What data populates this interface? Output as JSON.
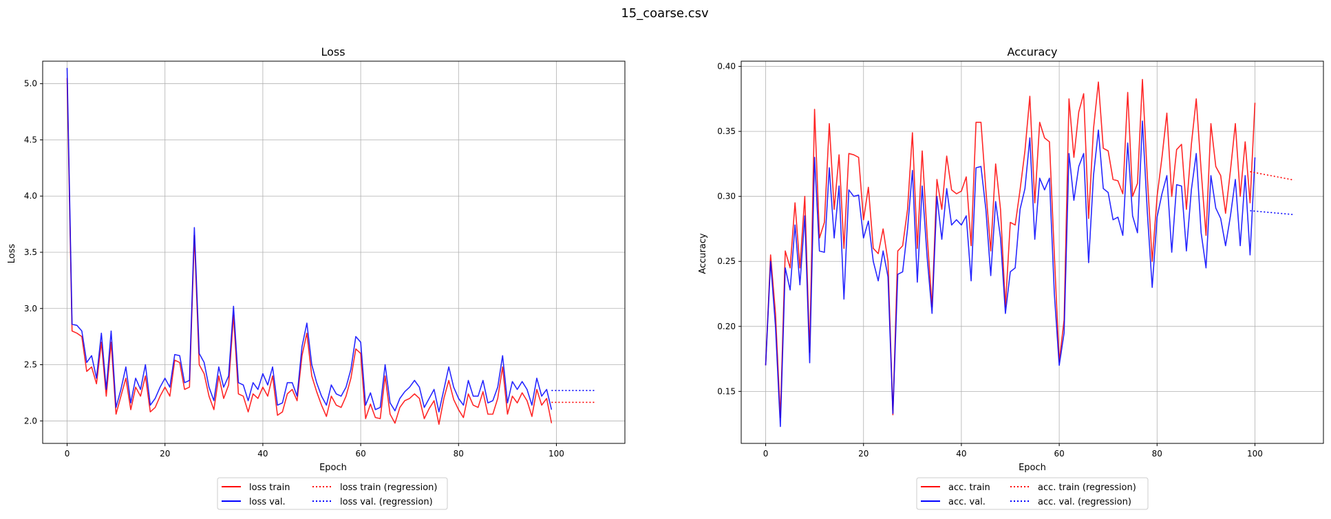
{
  "suptitle": "15_coarse.csv",
  "chart_data": [
    {
      "type": "line",
      "title": "Loss",
      "xlabel": "Epoch",
      "ylabel": "Loss",
      "xlim": [
        -5,
        114
      ],
      "ylim": [
        1.8,
        5.2
      ],
      "xticks": [
        0,
        20,
        40,
        60,
        80,
        100
      ],
      "yticks": [
        2.0,
        2.5,
        3.0,
        3.5,
        4.0,
        4.5,
        5.0
      ],
      "ytick_labels": [
        "2.0",
        "2.5",
        "3.0",
        "3.5",
        "4.0",
        "4.5",
        "5.0"
      ],
      "grid": true,
      "legend_position": "bottom-center, below plot",
      "series": [
        {
          "name": "loss train",
          "color": "#ff0000",
          "style": "solid",
          "values": [
            5.05,
            2.8,
            2.78,
            2.75,
            2.44,
            2.48,
            2.33,
            2.7,
            2.22,
            2.7,
            2.06,
            2.22,
            2.38,
            2.1,
            2.3,
            2.22,
            2.4,
            2.08,
            2.12,
            2.22,
            2.3,
            2.22,
            2.54,
            2.52,
            2.28,
            2.3,
            3.65,
            2.5,
            2.42,
            2.22,
            2.1,
            2.4,
            2.2,
            2.32,
            2.94,
            2.24,
            2.22,
            2.08,
            2.24,
            2.2,
            2.3,
            2.22,
            2.4,
            2.05,
            2.08,
            2.24,
            2.28,
            2.18,
            2.58,
            2.78,
            2.4,
            2.26,
            2.14,
            2.04,
            2.22,
            2.14,
            2.12,
            2.22,
            2.38,
            2.64,
            2.6,
            2.02,
            2.15,
            2.03,
            2.02,
            2.4,
            2.06,
            1.98,
            2.12,
            2.18,
            2.2,
            2.24,
            2.2,
            2.02,
            2.11,
            2.18,
            1.97,
            2.2,
            2.36,
            2.19,
            2.1,
            2.03,
            2.24,
            2.14,
            2.12,
            2.26,
            2.06,
            2.06,
            2.2,
            2.48,
            2.06,
            2.22,
            2.16,
            2.25,
            2.18,
            2.04,
            2.28,
            2.14,
            2.2,
            1.98
          ]
        },
        {
          "name": "loss val.",
          "color": "#0000ff",
          "style": "solid",
          "values": [
            5.14,
            2.86,
            2.85,
            2.8,
            2.52,
            2.58,
            2.38,
            2.78,
            2.28,
            2.8,
            2.12,
            2.28,
            2.48,
            2.16,
            2.38,
            2.28,
            2.5,
            2.14,
            2.2,
            2.3,
            2.38,
            2.3,
            2.59,
            2.58,
            2.34,
            2.36,
            3.72,
            2.6,
            2.52,
            2.3,
            2.18,
            2.48,
            2.3,
            2.4,
            3.02,
            2.34,
            2.32,
            2.18,
            2.34,
            2.28,
            2.42,
            2.32,
            2.48,
            2.14,
            2.16,
            2.34,
            2.34,
            2.22,
            2.66,
            2.87,
            2.5,
            2.34,
            2.22,
            2.14,
            2.32,
            2.24,
            2.22,
            2.3,
            2.46,
            2.75,
            2.7,
            2.14,
            2.25,
            2.1,
            2.12,
            2.5,
            2.16,
            2.09,
            2.2,
            2.26,
            2.3,
            2.36,
            2.3,
            2.12,
            2.2,
            2.28,
            2.08,
            2.28,
            2.48,
            2.3,
            2.2,
            2.14,
            2.36,
            2.22,
            2.22,
            2.36,
            2.16,
            2.18,
            2.3,
            2.58,
            2.16,
            2.35,
            2.28,
            2.35,
            2.28,
            2.14,
            2.38,
            2.22,
            2.28,
            2.1
          ]
        },
        {
          "name": "loss train (regression)",
          "color": "#ff0000",
          "style": "dotted",
          "x": [
            99,
            108
          ],
          "values": [
            2.165,
            2.165
          ]
        },
        {
          "name": "loss val. (regression)",
          "color": "#0000ff",
          "style": "dotted",
          "x": [
            99,
            108
          ],
          "values": [
            2.27,
            2.27
          ]
        }
      ]
    },
    {
      "type": "line",
      "title": "Accuracy",
      "xlabel": "Epoch",
      "ylabel": "Accuracy",
      "xlim": [
        -5,
        114
      ],
      "ylim": [
        0.11,
        0.404
      ],
      "xticks": [
        0,
        20,
        40,
        60,
        80,
        100
      ],
      "yticks": [
        0.15,
        0.2,
        0.25,
        0.3,
        0.35,
        0.4
      ],
      "ytick_labels": [
        "0.15",
        "0.20",
        "0.25",
        "0.30",
        "0.35",
        "0.40"
      ],
      "grid": true,
      "legend_position": "bottom-center, below plot",
      "series": [
        {
          "name": "acc. train",
          "color": "#ff0000",
          "style": "solid",
          "values": [
            0.17,
            0.255,
            0.21,
            0.13,
            0.258,
            0.245,
            0.295,
            0.245,
            0.3,
            0.18,
            0.367,
            0.268,
            0.28,
            0.356,
            0.29,
            0.332,
            0.26,
            0.333,
            0.332,
            0.33,
            0.282,
            0.307,
            0.26,
            0.256,
            0.275,
            0.25,
            0.132,
            0.258,
            0.262,
            0.29,
            0.349,
            0.26,
            0.335,
            0.27,
            0.215,
            0.313,
            0.29,
            0.331,
            0.305,
            0.302,
            0.304,
            0.315,
            0.262,
            0.357,
            0.357,
            0.305,
            0.258,
            0.325,
            0.29,
            0.215,
            0.28,
            0.278,
            0.305,
            0.335,
            0.377,
            0.295,
            0.357,
            0.345,
            0.342,
            0.255,
            0.173,
            0.205,
            0.375,
            0.33,
            0.365,
            0.379,
            0.283,
            0.352,
            0.388,
            0.337,
            0.335,
            0.313,
            0.312,
            0.302,
            0.38,
            0.3,
            0.31,
            0.39,
            0.315,
            0.25,
            0.3,
            0.33,
            0.364,
            0.3,
            0.336,
            0.34,
            0.29,
            0.34,
            0.375,
            0.32,
            0.27,
            0.356,
            0.323,
            0.316,
            0.287,
            0.32,
            0.356,
            0.3,
            0.342,
            0.295,
            0.372
          ]
        },
        {
          "name": "acc. val.",
          "color": "#0000ff",
          "style": "solid",
          "values": [
            0.17,
            0.25,
            0.2,
            0.123,
            0.245,
            0.228,
            0.278,
            0.232,
            0.285,
            0.172,
            0.33,
            0.258,
            0.257,
            0.322,
            0.268,
            0.308,
            0.221,
            0.305,
            0.3,
            0.301,
            0.268,
            0.281,
            0.25,
            0.235,
            0.258,
            0.238,
            0.133,
            0.24,
            0.242,
            0.275,
            0.32,
            0.234,
            0.308,
            0.253,
            0.21,
            0.3,
            0.267,
            0.306,
            0.278,
            0.282,
            0.278,
            0.285,
            0.235,
            0.322,
            0.323,
            0.29,
            0.239,
            0.296,
            0.268,
            0.21,
            0.242,
            0.245,
            0.29,
            0.306,
            0.345,
            0.267,
            0.314,
            0.305,
            0.314,
            0.225,
            0.17,
            0.195,
            0.333,
            0.297,
            0.323,
            0.333,
            0.249,
            0.316,
            0.351,
            0.306,
            0.303,
            0.282,
            0.284,
            0.27,
            0.341,
            0.285,
            0.272,
            0.358,
            0.288,
            0.23,
            0.284,
            0.302,
            0.316,
            0.257,
            0.309,
            0.308,
            0.258,
            0.305,
            0.333,
            0.272,
            0.245,
            0.316,
            0.291,
            0.283,
            0.262,
            0.285,
            0.313,
            0.262,
            0.316,
            0.255,
            0.33
          ]
        },
        {
          "name": "acc. train (regression)",
          "color": "#ff0000",
          "style": "dotted",
          "x": [
            99,
            108
          ],
          "values": [
            0.319,
            0.3125
          ]
        },
        {
          "name": "acc. val. (regression)",
          "color": "#0000ff",
          "style": "dotted",
          "x": [
            99,
            108
          ],
          "values": [
            0.289,
            0.286
          ]
        }
      ]
    }
  ]
}
